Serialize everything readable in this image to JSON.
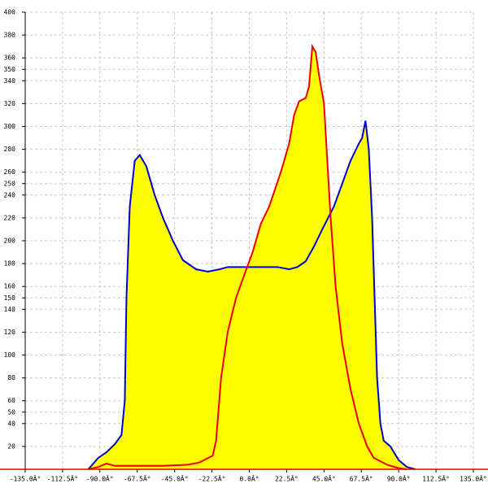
{
  "chart_data": {
    "type": "area-line",
    "xlim": [
      -135,
      135
    ],
    "ylim": [
      0,
      400
    ],
    "xticks": [
      {
        "value": -135,
        "label": "-135.0Â°"
      },
      {
        "value": -112.5,
        "label": "-112.5Â°"
      },
      {
        "value": -90,
        "label": "-90.0Â°"
      },
      {
        "value": -67.5,
        "label": "-67.5Â°"
      },
      {
        "value": -45,
        "label": "-45.0Â°"
      },
      {
        "value": -22.5,
        "label": "-22.5Â°"
      },
      {
        "value": 0,
        "label": "0.0Â°"
      },
      {
        "value": 22.5,
        "label": "22.5Â°"
      },
      {
        "value": 45,
        "label": "45.0Â°"
      },
      {
        "value": 67.5,
        "label": "67.5Â°"
      },
      {
        "value": 90,
        "label": "90.0Â°"
      },
      {
        "value": 112.5,
        "label": "112.5Â°"
      },
      {
        "value": 135,
        "label": "135.0Â°"
      }
    ],
    "yticks": [
      20,
      40,
      50,
      60,
      80,
      100,
      120,
      140,
      150,
      160,
      180,
      200,
      220,
      240,
      250,
      260,
      280,
      300,
      320,
      340,
      350,
      360,
      380,
      400
    ],
    "grid": true,
    "fill_color": "#ffff00",
    "series": [
      {
        "color": "#0000cc",
        "x": [
          -97,
          -91,
          -86,
          -81,
          -77,
          -75,
          -74,
          -72,
          -69,
          -66,
          -62,
          -57,
          -52,
          -46,
          -40,
          -32,
          -25,
          -18,
          -13,
          -3,
          7,
          17,
          24,
          29,
          34,
          39,
          44,
          51,
          56,
          61,
          66,
          68,
          70,
          72,
          74,
          75.5,
          77,
          79,
          81,
          85,
          90,
          95,
          100
        ],
        "values": [
          0,
          10,
          15,
          22,
          30,
          60,
          150,
          230,
          270,
          275,
          265,
          240,
          220,
          200,
          183,
          175,
          173,
          175,
          177,
          177,
          177,
          177,
          175,
          177,
          182,
          195,
          210,
          230,
          250,
          270,
          285,
          290,
          305,
          280,
          220,
          150,
          80,
          40,
          25,
          20,
          8,
          2,
          0
        ]
      },
      {
        "color": "#ee0000",
        "x": [
          -97,
          -91,
          -86,
          -81,
          -52,
          -37,
          -30,
          -22,
          -20,
          -17,
          -13,
          -8,
          -3,
          2,
          7,
          12,
          19,
          24,
          27,
          30,
          34,
          36,
          38,
          40,
          42,
          45,
          47,
          49,
          52,
          56,
          61,
          66,
          71,
          75,
          83,
          90,
          95
        ],
        "values": [
          0,
          2,
          5,
          3,
          3,
          4,
          6,
          12,
          25,
          80,
          120,
          150,
          170,
          190,
          215,
          230,
          260,
          285,
          310,
          322,
          325,
          335,
          370,
          365,
          345,
          320,
          270,
          220,
          160,
          110,
          70,
          40,
          20,
          10,
          4,
          1,
          0
        ]
      }
    ]
  }
}
